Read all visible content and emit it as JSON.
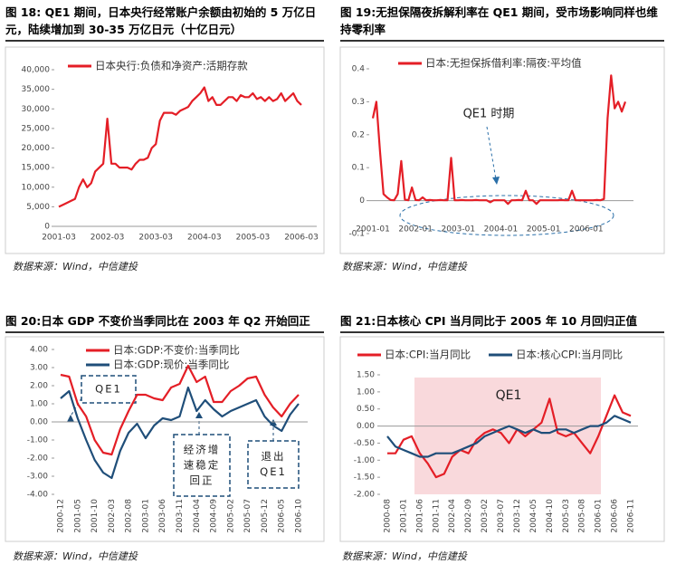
{
  "chart_data": [
    {
      "type": "line",
      "title": "图 18: QE1 期间，日本央行经常账户余额由初始的 5 万亿日元，陆续增加到 30-35 万亿日元（十亿日元）",
      "source": "数据来源：Wind，中信建投",
      "categories": [
        "2001-03",
        null,
        null,
        null,
        null,
        null,
        null,
        null,
        null,
        null,
        null,
        null,
        "2002-03",
        null,
        null,
        null,
        null,
        null,
        null,
        null,
        null,
        null,
        null,
        null,
        "2003-03",
        null,
        null,
        null,
        null,
        null,
        null,
        null,
        null,
        null,
        null,
        null,
        "2004-03",
        null,
        null,
        null,
        null,
        null,
        null,
        null,
        null,
        null,
        null,
        null,
        "2005-03",
        null,
        null,
        null,
        null,
        null,
        null,
        null,
        null,
        null,
        null,
        null,
        "2006-03"
      ],
      "series": [
        {
          "name": "日本央行:负债和净资产:活期存款",
          "color": "#e41e26",
          "values": [
            5000,
            5500,
            6000,
            6500,
            7000,
            10000,
            12000,
            10000,
            11000,
            14000,
            15000,
            16000,
            27500,
            16000,
            16000,
            15000,
            15000,
            15000,
            14500,
            16000,
            17000,
            17000,
            17500,
            20000,
            21000,
            27000,
            29000,
            29000,
            29000,
            28500,
            29500,
            30000,
            30500,
            32000,
            33000,
            34000,
            35500,
            32000,
            33000,
            31000,
            31000,
            32000,
            33000,
            33000,
            32000,
            33500,
            33000,
            33000,
            34000,
            32500,
            33000,
            32000,
            33000,
            32000,
            32500,
            34000,
            32000,
            33000,
            34000,
            32000,
            31000
          ]
        }
      ],
      "ylim": [
        0,
        40000
      ],
      "yticks": [
        0,
        {
          "value": 5000,
          "label": "5,000"
        },
        {
          "value": 10000,
          "label": "10,000"
        },
        {
          "value": 15000,
          "label": "15,000"
        },
        {
          "value": 20000,
          "label": "20,000"
        },
        {
          "value": 25000,
          "label": "25,000"
        },
        {
          "value": 30000,
          "label": "30,000"
        },
        {
          "value": 35000,
          "label": "35,000"
        },
        {
          "value": 40000,
          "label": "40,000"
        }
      ]
    },
    {
      "type": "line",
      "title": "图 19:无担保隔夜拆解利率在 QE1 期间，受市场影响同样也维持零利率",
      "source": "数据来源：Wind，中信建投",
      "annotation": "QE1 时期",
      "categories": [
        "2001-01",
        null,
        null,
        null,
        null,
        null,
        null,
        null,
        null,
        null,
        null,
        null,
        "2002-01",
        null,
        null,
        null,
        null,
        null,
        null,
        null,
        null,
        null,
        null,
        null,
        "2003-01",
        null,
        null,
        null,
        null,
        null,
        null,
        null,
        null,
        null,
        null,
        null,
        "2004-01",
        null,
        null,
        null,
        null,
        null,
        null,
        null,
        null,
        null,
        null,
        null,
        "2005-01",
        null,
        null,
        null,
        null,
        null,
        null,
        null,
        null,
        null,
        null,
        null,
        "2006-01",
        null,
        null,
        null,
        null,
        null,
        null,
        null,
        null,
        null,
        null,
        null
      ],
      "series": [
        {
          "name": "日本:无担保拆借利率:隔夜:平均值",
          "color": "#e41e26",
          "values": [
            0.25,
            0.3,
            0.15,
            0.02,
            0.01,
            0.002,
            0.001,
            0.02,
            0.12,
            0.003,
            0.001,
            0.04,
            0.002,
            0.001,
            0.01,
            0.001,
            0.002,
            0.001,
            0.001,
            0.002,
            0.001,
            0.001,
            0.13,
            0.001,
            0.001,
            0.002,
            0.001,
            0.001,
            0.001,
            0.002,
            0.001,
            0.001,
            0.001,
            -0.005,
            0.001,
            0.001,
            0.001,
            0.001,
            -0.01,
            0.001,
            0.001,
            0.002,
            0.001,
            0.03,
            0.001,
            0.001,
            -0.01,
            0.001,
            0.001,
            0.001,
            0.001,
            0.001,
            0.001,
            0.002,
            0.001,
            0.001,
            0.03,
            0.001,
            0.001,
            0.001,
            0.001,
            0.001,
            0.001,
            0.002,
            0.001,
            0.005,
            0.25,
            0.38,
            0.28,
            0.3,
            0.27,
            0.3
          ]
        }
      ],
      "ylim": [
        -0.1,
        0.4
      ],
      "yticks": [
        -0.1,
        0,
        0.1,
        0.2,
        0.3,
        0.4
      ]
    },
    {
      "type": "line",
      "title": "图 20:日本 GDP 不变价当季同比在 2003 年 Q2 开始回正",
      "source": "数据来源：Wind，中信建投",
      "annotations": [
        [
          "QE1"
        ],
        [
          "经济增",
          "速稳定",
          "回正"
        ],
        [
          "退出",
          "QE1"
        ]
      ],
      "categories": [
        "2000-12",
        null,
        "2001-05",
        null,
        "2001-10",
        null,
        "2002-03",
        null,
        "2002-08",
        null,
        "2003-01",
        null,
        "2003-06",
        null,
        "2003-11",
        null,
        "2004-04",
        null,
        "2004-09",
        null,
        "2005-02",
        null,
        "2005-07",
        null,
        "2005-12",
        null,
        "2006-05",
        null,
        "2006-10"
      ],
      "series": [
        {
          "name": "日本:GDP:不变价:当季同比",
          "color": "#e41e26",
          "values": [
            2.6,
            2.5,
            1.0,
            0.3,
            -1.0,
            -1.7,
            -1.8,
            -0.4,
            0.6,
            1.5,
            1.5,
            1.3,
            1.2,
            1.9,
            2.1,
            3.1,
            2.2,
            2.5,
            1.1,
            1.1,
            1.7,
            2.0,
            2.4,
            2.5,
            1.5,
            0.8,
            0.3,
            1.0,
            1.5
          ]
        },
        {
          "name": "日本:GDP:现价:当季同比",
          "color": "#1f4e79",
          "values": [
            1.3,
            1.7,
            0.2,
            -1.0,
            -2.1,
            -2.8,
            -3.1,
            -1.6,
            -0.6,
            -0.1,
            -0.9,
            -0.2,
            0.2,
            0.1,
            0.3,
            1.9,
            0.6,
            1.2,
            0.7,
            0.3,
            0.6,
            0.8,
            1.0,
            1.2,
            0.3,
            -0.2,
            -0.5,
            0.4,
            1.0
          ]
        }
      ],
      "ylim": [
        -4,
        4
      ],
      "yticks": [
        {
          "value": -4,
          "label": "-4.00"
        },
        {
          "value": -3,
          "label": "-3.00"
        },
        {
          "value": -2,
          "label": "-2.00"
        },
        {
          "value": -1,
          "label": "-1.00"
        },
        {
          "value": 0,
          "label": "0.00"
        },
        {
          "value": 1,
          "label": "1.00"
        },
        {
          "value": 2,
          "label": "2.00"
        },
        {
          "value": 3,
          "label": "3.00"
        },
        {
          "value": 4,
          "label": "4.00"
        }
      ]
    },
    {
      "type": "line",
      "title": "图 21:日本核心 CPI 当月同比于 2005 年 10 月回归正值",
      "source": "数据来源：Wind，中信建投",
      "annotation": "QE1",
      "categories": [
        "2000-08",
        null,
        "2001-01",
        null,
        "2001-06",
        null,
        "2001-11",
        null,
        "2002-04",
        null,
        "2002-09",
        null,
        "2003-02",
        null,
        "2003-07",
        null,
        "2003-12",
        null,
        "2004-05",
        null,
        "2004-10",
        null,
        "2005-03",
        null,
        "2005-08",
        null,
        "2006-01",
        null,
        "2006-06",
        null,
        "2006-11"
      ],
      "series": [
        {
          "name": "日本:CPI:当月同比",
          "color": "#e41e26",
          "values": [
            -0.8,
            -0.8,
            -0.4,
            -0.3,
            -0.8,
            -1.1,
            -1.5,
            -1.4,
            -0.9,
            -0.7,
            -0.8,
            -0.4,
            -0.2,
            -0.1,
            -0.2,
            -0.5,
            -0.1,
            -0.3,
            -0.1,
            0.1,
            0.8,
            -0.2,
            -0.3,
            -0.2,
            -0.5,
            -0.8,
            -0.3,
            0.3,
            0.9,
            0.4,
            0.3
          ]
        },
        {
          "name": "日本:核心CPI:当月同比",
          "color": "#1f4e79",
          "values": [
            -0.3,
            -0.6,
            -0.7,
            -0.8,
            -0.9,
            -0.9,
            -0.8,
            -0.8,
            -0.8,
            -0.7,
            -0.6,
            -0.5,
            -0.3,
            -0.2,
            -0.1,
            0.0,
            -0.1,
            -0.2,
            -0.1,
            -0.2,
            -0.2,
            -0.1,
            -0.1,
            -0.2,
            -0.1,
            0.0,
            0.0,
            0.1,
            0.3,
            0.2,
            0.1
          ]
        }
      ],
      "ylim": [
        -2,
        1.5
      ],
      "yticks": [
        {
          "value": -2,
          "label": "-2.00"
        },
        {
          "value": -1.5,
          "label": "-1.50"
        },
        {
          "value": -1,
          "label": "-1.00"
        },
        {
          "value": -0.5,
          "label": "-0.50"
        },
        {
          "value": 0,
          "label": "0.00"
        },
        {
          "value": 0.5,
          "label": "0.50"
        },
        {
          "value": 1,
          "label": "1.00"
        },
        {
          "value": 1.5,
          "label": "1.50"
        }
      ]
    }
  ]
}
